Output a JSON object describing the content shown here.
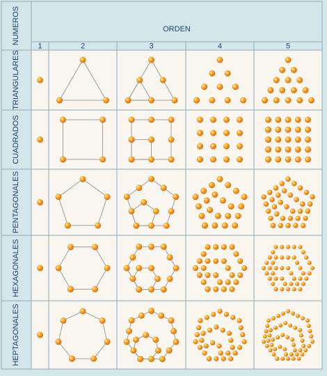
{
  "header": {
    "corner": "NUMEROS",
    "title": "ORDEN",
    "columns": [
      "1",
      "2",
      "3",
      "4",
      "5"
    ]
  },
  "rows": [
    "TRIANGULARES",
    "CUADRADOS",
    "PENTAGONALES",
    "HEXAGONALES",
    "HEPTAGONALES"
  ]
}
